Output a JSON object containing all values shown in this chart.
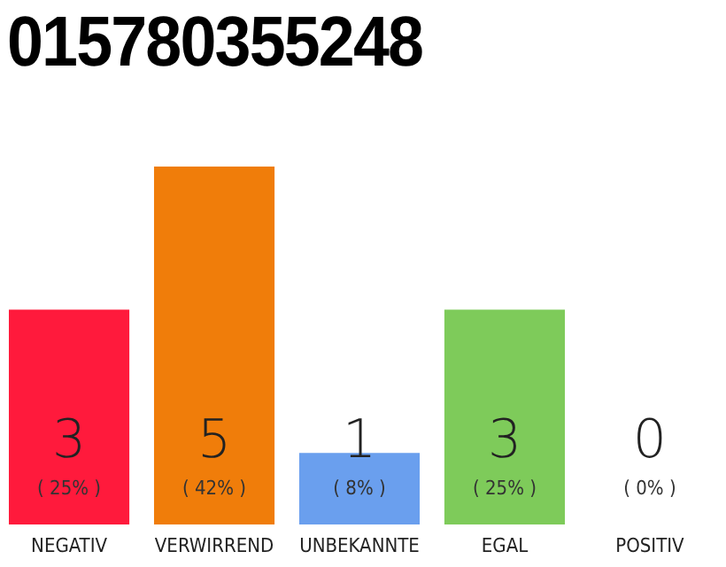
{
  "chart_data": {
    "type": "bar",
    "title": "015780355248",
    "categories": [
      "NEGATIV",
      "VERWIRREND",
      "UNBEKANNTE",
      "EGAL",
      "POSITIV"
    ],
    "values": [
      3,
      5,
      1,
      3,
      0
    ],
    "colors": [
      "#ff1a3c",
      "#f07d0a",
      "#6a9fee",
      "#7ecb5a",
      "#1ea84a"
    ],
    "ylim": [
      0,
      5
    ],
    "data_labels": true,
    "tick_labels": "x",
    "annotations": [
      "( 25% )",
      "( 42% )",
      "( 8% )",
      "( 25% )",
      "( 0% )"
    ]
  }
}
